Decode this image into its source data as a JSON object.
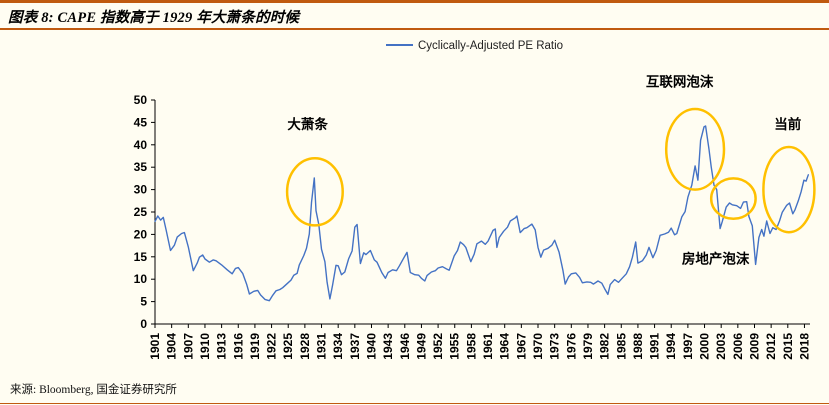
{
  "header": {
    "title": "图表 8: CAPE 指数高于 1929 年大萧条的时候"
  },
  "footer": {
    "source": "来源: Bloomberg, 国金证券研究所"
  },
  "colors": {
    "background": "#FFFDF2",
    "rule": "#C05A0F",
    "axis": "#000000",
    "line": "#4472C4",
    "highlight": "#FFC000"
  },
  "chart_data": {
    "type": "line",
    "title": "",
    "xlabel": "",
    "ylabel": "",
    "ylim": [
      0,
      50
    ],
    "xlim": [
      1901,
      2019
    ],
    "yticks": [
      0,
      5,
      10,
      15,
      20,
      25,
      30,
      35,
      40,
      45,
      50
    ],
    "xticks": [
      1901,
      1904,
      1907,
      1910,
      1913,
      1916,
      1919,
      1922,
      1925,
      1928,
      1931,
      1934,
      1937,
      1940,
      1943,
      1946,
      1949,
      1952,
      1955,
      1958,
      1961,
      1964,
      1967,
      1970,
      1973,
      1976,
      1979,
      1982,
      1985,
      1988,
      1991,
      1994,
      1997,
      2000,
      2003,
      2006,
      2009,
      2012,
      2015,
      2018
    ],
    "grid": false,
    "legend_position": "top-center",
    "legend": [
      {
        "label": "Cyclically-Adjusted PE Ratio",
        "color": "#4472C4"
      }
    ],
    "highlight_color": "#FFC000",
    "series": [
      {
        "name": "Cyclically-Adjusted PE Ratio",
        "color": "#4472C4",
        "points": [
          [
            1901.0,
            22.9
          ],
          [
            1901.5,
            24.1
          ],
          [
            1902.0,
            23.2
          ],
          [
            1902.5,
            23.8
          ],
          [
            1903.0,
            21.0
          ],
          [
            1903.8,
            16.4
          ],
          [
            1904.5,
            17.6
          ],
          [
            1905.0,
            19.4
          ],
          [
            1905.8,
            20.2
          ],
          [
            1906.3,
            20.4
          ],
          [
            1907.0,
            17.2
          ],
          [
            1907.9,
            11.9
          ],
          [
            1908.6,
            13.6
          ],
          [
            1909.0,
            14.9
          ],
          [
            1909.6,
            15.4
          ],
          [
            1910.0,
            14.5
          ],
          [
            1910.8,
            13.8
          ],
          [
            1911.5,
            14.3
          ],
          [
            1912.0,
            14.1
          ],
          [
            1913.0,
            13.2
          ],
          [
            1914.0,
            12.1
          ],
          [
            1914.9,
            11.2
          ],
          [
            1915.5,
            12.4
          ],
          [
            1916.0,
            12.6
          ],
          [
            1916.8,
            11.3
          ],
          [
            1917.5,
            8.9
          ],
          [
            1918.0,
            6.7
          ],
          [
            1918.8,
            7.3
          ],
          [
            1919.5,
            7.5
          ],
          [
            1920.0,
            6.5
          ],
          [
            1920.8,
            5.5
          ],
          [
            1921.6,
            5.2
          ],
          [
            1922.2,
            6.4
          ],
          [
            1922.8,
            7.4
          ],
          [
            1923.5,
            7.7
          ],
          [
            1924.0,
            8.1
          ],
          [
            1924.8,
            9.0
          ],
          [
            1925.5,
            9.8
          ],
          [
            1926.0,
            10.9
          ],
          [
            1926.6,
            11.3
          ],
          [
            1927.0,
            13.2
          ],
          [
            1927.8,
            15.3
          ],
          [
            1928.3,
            16.9
          ],
          [
            1928.8,
            20.1
          ],
          [
            1929.2,
            27.1
          ],
          [
            1929.7,
            32.6
          ],
          [
            1930.0,
            25.3
          ],
          [
            1930.5,
            22.2
          ],
          [
            1931.0,
            16.7
          ],
          [
            1931.6,
            13.9
          ],
          [
            1932.0,
            9.3
          ],
          [
            1932.5,
            5.6
          ],
          [
            1933.0,
            8.7
          ],
          [
            1933.6,
            13.1
          ],
          [
            1934.0,
            13.0
          ],
          [
            1934.6,
            11.0
          ],
          [
            1935.2,
            11.6
          ],
          [
            1935.9,
            14.6
          ],
          [
            1936.5,
            16.3
          ],
          [
            1937.0,
            21.6
          ],
          [
            1937.4,
            22.2
          ],
          [
            1938.0,
            13.5
          ],
          [
            1938.6,
            15.9
          ],
          [
            1939.0,
            15.5
          ],
          [
            1939.8,
            16.4
          ],
          [
            1940.5,
            14.3
          ],
          [
            1941.0,
            13.8
          ],
          [
            1941.9,
            11.4
          ],
          [
            1942.5,
            10.2
          ],
          [
            1943.0,
            11.5
          ],
          [
            1943.8,
            12.1
          ],
          [
            1944.5,
            11.9
          ],
          [
            1945.0,
            12.9
          ],
          [
            1945.9,
            14.9
          ],
          [
            1946.4,
            16.0
          ],
          [
            1947.0,
            11.5
          ],
          [
            1947.8,
            11.0
          ],
          [
            1948.5,
            10.9
          ],
          [
            1949.0,
            10.2
          ],
          [
            1949.6,
            9.6
          ],
          [
            1950.0,
            10.8
          ],
          [
            1950.8,
            11.6
          ],
          [
            1951.5,
            11.9
          ],
          [
            1952.0,
            12.5
          ],
          [
            1952.8,
            12.8
          ],
          [
            1953.5,
            12.3
          ],
          [
            1954.0,
            12.0
          ],
          [
            1954.9,
            15.2
          ],
          [
            1955.5,
            16.4
          ],
          [
            1956.0,
            18.3
          ],
          [
            1956.6,
            17.7
          ],
          [
            1957.0,
            17.1
          ],
          [
            1957.9,
            13.9
          ],
          [
            1958.5,
            15.6
          ],
          [
            1959.0,
            17.9
          ],
          [
            1959.8,
            18.5
          ],
          [
            1960.5,
            17.8
          ],
          [
            1961.0,
            18.5
          ],
          [
            1961.9,
            20.9
          ],
          [
            1962.3,
            21.2
          ],
          [
            1962.6,
            17.1
          ],
          [
            1963.0,
            19.3
          ],
          [
            1963.8,
            20.7
          ],
          [
            1964.5,
            21.6
          ],
          [
            1965.0,
            23.0
          ],
          [
            1965.9,
            23.7
          ],
          [
            1966.2,
            24.1
          ],
          [
            1966.8,
            20.4
          ],
          [
            1967.5,
            21.3
          ],
          [
            1968.0,
            21.5
          ],
          [
            1968.9,
            22.3
          ],
          [
            1969.5,
            21.0
          ],
          [
            1970.0,
            17.1
          ],
          [
            1970.5,
            14.9
          ],
          [
            1971.0,
            16.5
          ],
          [
            1971.8,
            16.9
          ],
          [
            1972.5,
            17.6
          ],
          [
            1973.0,
            18.7
          ],
          [
            1973.8,
            16.0
          ],
          [
            1974.5,
            11.9
          ],
          [
            1974.9,
            8.9
          ],
          [
            1975.5,
            10.5
          ],
          [
            1976.0,
            11.2
          ],
          [
            1976.8,
            11.4
          ],
          [
            1977.5,
            10.4
          ],
          [
            1978.0,
            9.2
          ],
          [
            1978.8,
            9.4
          ],
          [
            1979.5,
            9.3
          ],
          [
            1980.0,
            8.9
          ],
          [
            1980.8,
            9.6
          ],
          [
            1981.5,
            9.1
          ],
          [
            1982.0,
            7.9
          ],
          [
            1982.6,
            6.6
          ],
          [
            1983.0,
            8.8
          ],
          [
            1983.8,
            9.9
          ],
          [
            1984.5,
            9.3
          ],
          [
            1985.0,
            10.0
          ],
          [
            1985.9,
            11.2
          ],
          [
            1986.5,
            12.8
          ],
          [
            1987.0,
            14.9
          ],
          [
            1987.6,
            18.3
          ],
          [
            1988.0,
            13.6
          ],
          [
            1988.8,
            14.1
          ],
          [
            1989.5,
            15.4
          ],
          [
            1990.0,
            17.1
          ],
          [
            1990.7,
            14.8
          ],
          [
            1991.3,
            16.4
          ],
          [
            1992.0,
            19.8
          ],
          [
            1992.8,
            20.1
          ],
          [
            1993.5,
            20.5
          ],
          [
            1994.0,
            21.4
          ],
          [
            1994.6,
            19.9
          ],
          [
            1995.0,
            20.2
          ],
          [
            1995.9,
            23.9
          ],
          [
            1996.5,
            25.1
          ],
          [
            1997.0,
            28.3
          ],
          [
            1997.7,
            31.0
          ],
          [
            1998.3,
            35.3
          ],
          [
            1998.8,
            32.1
          ],
          [
            1999.3,
            41.0
          ],
          [
            1999.9,
            44.0
          ],
          [
            2000.2,
            44.2
          ],
          [
            2000.8,
            39.0
          ],
          [
            2001.2,
            35.1
          ],
          [
            2001.7,
            31.0
          ],
          [
            2002.2,
            30.0
          ],
          [
            2002.8,
            21.3
          ],
          [
            2003.2,
            22.9
          ],
          [
            2003.9,
            26.1
          ],
          [
            2004.5,
            27.0
          ],
          [
            2005.0,
            26.6
          ],
          [
            2005.8,
            26.4
          ],
          [
            2006.5,
            25.8
          ],
          [
            2007.0,
            27.2
          ],
          [
            2007.6,
            27.3
          ],
          [
            2008.0,
            24.0
          ],
          [
            2008.6,
            21.9
          ],
          [
            2009.2,
            13.3
          ],
          [
            2009.8,
            19.3
          ],
          [
            2010.3,
            21.1
          ],
          [
            2010.7,
            19.6
          ],
          [
            2011.2,
            23.0
          ],
          [
            2011.8,
            20.2
          ],
          [
            2012.3,
            21.5
          ],
          [
            2012.9,
            21.1
          ],
          [
            2013.5,
            23.0
          ],
          [
            2014.0,
            24.9
          ],
          [
            2014.8,
            26.5
          ],
          [
            2015.3,
            27.0
          ],
          [
            2015.9,
            24.6
          ],
          [
            2016.3,
            25.5
          ],
          [
            2016.9,
            27.5
          ],
          [
            2017.4,
            29.5
          ],
          [
            2017.9,
            32.1
          ],
          [
            2018.3,
            31.9
          ],
          [
            2018.7,
            33.3
          ]
        ]
      }
    ],
    "annotations": [
      {
        "label": "大萧条",
        "text_at": [
          1928.5,
          43.5
        ],
        "ellipse": {
          "center": [
            1929.8,
            29.5
          ],
          "rx_years": 5.0,
          "ry_values": 7.5
        }
      },
      {
        "label": "互联网泡沫",
        "text_at": [
          1995.5,
          53.0
        ],
        "ellipse": {
          "center": [
            1998.3,
            39.0
          ],
          "rx_years": 5.2,
          "ry_values": 9.0
        }
      },
      {
        "label": "房地产泡沫",
        "text_at": [
          2002.0,
          13.5
        ],
        "ellipse": {
          "center": [
            2005.2,
            28.0
          ],
          "rx_years": 4.0,
          "ry_values": 4.5
        }
      },
      {
        "label": "当前",
        "text_at": [
          2015.0,
          43.5
        ],
        "ellipse": {
          "center": [
            2015.2,
            30.0
          ],
          "rx_years": 4.6,
          "ry_values": 9.5
        }
      }
    ]
  }
}
